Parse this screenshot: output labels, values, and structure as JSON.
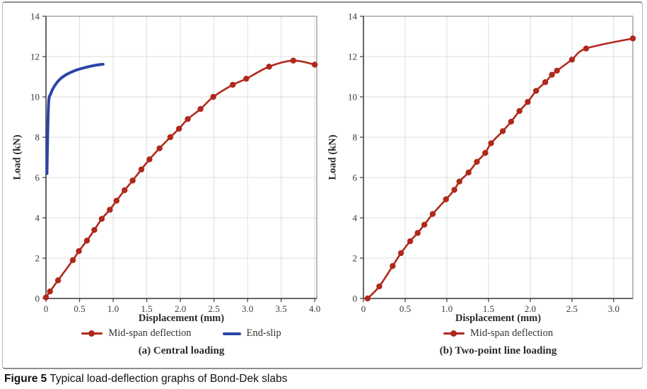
{
  "caption": {
    "label": "Figure 5",
    "text": "Typical load-deflection graphs of Bond-Dek slabs"
  },
  "colors": {
    "series_red": "#b0281c",
    "series_blue": "#2b44a8",
    "grid": "#dcdcdc",
    "axis": "#3c3c3c",
    "frame": "#909090",
    "tick_text": "#3a3a3a"
  },
  "chart_data": [
    {
      "type": "line",
      "title": "(a) Central loading",
      "xlabel": "Displacement (mm)",
      "ylabel": "Load (kN)",
      "xlim": [
        0,
        4.03
      ],
      "ylim": [
        0,
        14
      ],
      "xticks": [
        0,
        0.5,
        1,
        1.5,
        2,
        2.5,
        3,
        3.5,
        4
      ],
      "xtick_labels": [
        "0",
        "0.5",
        "1.0",
        "1.5",
        "2.0",
        "2.5",
        "3.0",
        "3.5",
        "4.0"
      ],
      "yticks": [
        0,
        2,
        4,
        6,
        8,
        10,
        12,
        14
      ],
      "ytick_labels": [
        "0",
        "2",
        "4",
        "6",
        "8",
        "10",
        "12",
        "14"
      ],
      "grid": true,
      "legend_position": "bottom",
      "series": [
        {
          "name": "Mid-span deflection",
          "color": "#b0281c",
          "marker": "circle",
          "line_width": 2.6,
          "points": [
            [
              0,
              0.05
            ],
            [
              0.06,
              0.35
            ],
            [
              0.18,
              0.9
            ],
            [
              0.4,
              1.9
            ],
            [
              0.49,
              2.35
            ],
            [
              0.61,
              2.87
            ],
            [
              0.72,
              3.4
            ],
            [
              0.83,
              3.95
            ],
            [
              0.95,
              4.4
            ],
            [
              1.05,
              4.85
            ],
            [
              1.17,
              5.37
            ],
            [
              1.29,
              5.85
            ],
            [
              1.42,
              6.4
            ],
            [
              1.54,
              6.9
            ],
            [
              1.69,
              7.45
            ],
            [
              1.85,
              8.0
            ],
            [
              1.98,
              8.42
            ],
            [
              2.11,
              8.9
            ],
            [
              2.3,
              9.4
            ],
            [
              2.49,
              10.0
            ],
            [
              2.78,
              10.6
            ],
            [
              2.98,
              10.9
            ],
            [
              3.32,
              11.5
            ],
            [
              3.68,
              11.8
            ],
            [
              4.0,
              11.6
            ]
          ]
        },
        {
          "name": "End-slip",
          "color": "#2b44a8",
          "marker": "none",
          "line_width": 4,
          "points": [
            [
              0.015,
              6.2
            ],
            [
              0.025,
              8.0
            ],
            [
              0.04,
              9.75
            ],
            [
              0.07,
              10.15
            ],
            [
              0.12,
              10.5
            ],
            [
              0.2,
              10.85
            ],
            [
              0.3,
              11.1
            ],
            [
              0.45,
              11.33
            ],
            [
              0.6,
              11.47
            ],
            [
              0.72,
              11.56
            ],
            [
              0.85,
              11.62
            ]
          ]
        }
      ]
    },
    {
      "type": "line",
      "title": "(b) Two-point line loading",
      "xlabel": "Displacement (mm)",
      "ylabel": "Load (kN)",
      "xlim": [
        0,
        3.23
      ],
      "ylim": [
        0,
        14
      ],
      "xticks": [
        0,
        0.5,
        1,
        1.5,
        2,
        2.5,
        3
      ],
      "xtick_labels": [
        "0",
        "0.5",
        "1.0",
        "1.5",
        "2.0",
        "2.5",
        "3.0"
      ],
      "yticks": [
        0,
        2,
        4,
        6,
        8,
        10,
        12,
        14
      ],
      "ytick_labels": [
        "0",
        "2",
        "4",
        "6",
        "8",
        "10",
        "12",
        "14"
      ],
      "grid": true,
      "legend_position": "bottom",
      "series": [
        {
          "name": "Mid-span deflection",
          "color": "#b0281c",
          "marker": "circle",
          "line_width": 2.6,
          "points": [
            [
              0.05,
              0.0
            ],
            [
              0.19,
              0.6
            ],
            [
              0.35,
              1.61
            ],
            [
              0.45,
              2.25
            ],
            [
              0.56,
              2.84
            ],
            [
              0.65,
              3.25
            ],
            [
              0.73,
              3.66
            ],
            [
              0.83,
              4.19
            ],
            [
              0.99,
              4.92
            ],
            [
              1.09,
              5.39
            ],
            [
              1.15,
              5.8
            ],
            [
              1.26,
              6.25
            ],
            [
              1.36,
              6.78
            ],
            [
              1.46,
              7.22
            ],
            [
              1.53,
              7.7
            ],
            [
              1.67,
              8.3
            ],
            [
              1.77,
              8.77
            ],
            [
              1.87,
              9.3
            ],
            [
              1.97,
              9.75
            ],
            [
              2.07,
              10.3
            ],
            [
              2.18,
              10.73
            ],
            [
              2.26,
              11.1
            ],
            [
              2.32,
              11.3
            ],
            [
              2.5,
              11.85
            ],
            [
              2.67,
              12.4
            ],
            [
              3.23,
              12.9
            ]
          ]
        }
      ]
    }
  ]
}
